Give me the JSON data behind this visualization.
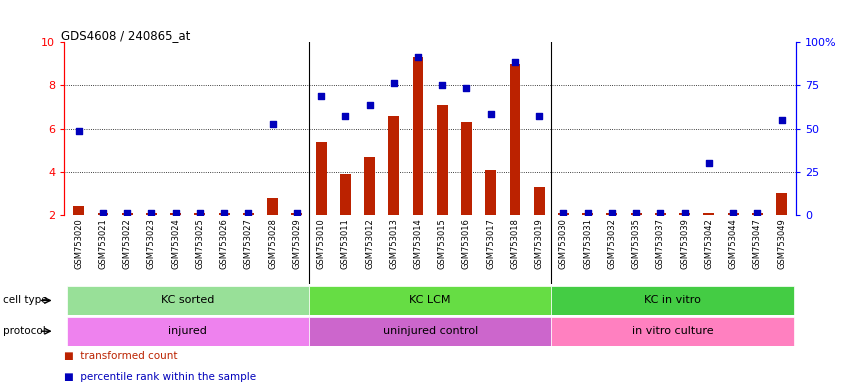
{
  "title": "GDS4608 / 240865_at",
  "samples": [
    "GSM753020",
    "GSM753021",
    "GSM753022",
    "GSM753023",
    "GSM753024",
    "GSM753025",
    "GSM753026",
    "GSM753027",
    "GSM753028",
    "GSM753029",
    "GSM753010",
    "GSM753011",
    "GSM753012",
    "GSM753013",
    "GSM753014",
    "GSM753015",
    "GSM753016",
    "GSM753017",
    "GSM753018",
    "GSM753019",
    "GSM753030",
    "GSM753031",
    "GSM753032",
    "GSM753035",
    "GSM753037",
    "GSM753039",
    "GSM753042",
    "GSM753044",
    "GSM753047",
    "GSM753049"
  ],
  "bar_values": [
    2.4,
    2.1,
    2.1,
    2.1,
    2.1,
    2.1,
    2.1,
    2.1,
    2.8,
    2.1,
    5.4,
    3.9,
    4.7,
    6.6,
    9.3,
    7.1,
    6.3,
    4.1,
    9.0,
    3.3,
    2.1,
    2.1,
    2.1,
    2.1,
    2.1,
    2.1,
    2.1,
    2.1,
    2.1,
    3.0
  ],
  "dot_values": [
    5.9,
    2.1,
    2.1,
    2.1,
    2.1,
    2.1,
    2.1,
    2.1,
    6.2,
    2.1,
    7.5,
    6.6,
    7.1,
    8.1,
    9.3,
    8.0,
    7.9,
    6.7,
    9.1,
    6.6,
    2.1,
    2.1,
    2.1,
    2.1,
    2.1,
    2.1,
    4.4,
    2.1,
    2.1,
    6.4
  ],
  "groups": [
    {
      "label": "KC sorted",
      "start": 0,
      "end": 9,
      "color": "#98e098"
    },
    {
      "label": "KC LCM",
      "start": 10,
      "end": 19,
      "color": "#66dd44"
    },
    {
      "label": "KC in vitro",
      "start": 20,
      "end": 29,
      "color": "#44cc44"
    }
  ],
  "protocols": [
    {
      "label": "injured",
      "start": 0,
      "end": 9,
      "color": "#ee82ee"
    },
    {
      "label": "uninjured control",
      "start": 10,
      "end": 19,
      "color": "#cc66cc"
    },
    {
      "label": "in vitro culture",
      "start": 20,
      "end": 29,
      "color": "#ff80c0"
    }
  ],
  "bar_color": "#bb2200",
  "dot_color": "#0000bb",
  "ylim_left": [
    2,
    10
  ],
  "ylim_right": [
    0,
    100
  ],
  "yticks_left": [
    2,
    4,
    6,
    8,
    10
  ],
  "yticks_right": [
    0,
    25,
    50,
    75,
    100
  ],
  "grid_lines": [
    4,
    6,
    8
  ],
  "bar_baseline": 2.0,
  "bar_width": 0.45
}
